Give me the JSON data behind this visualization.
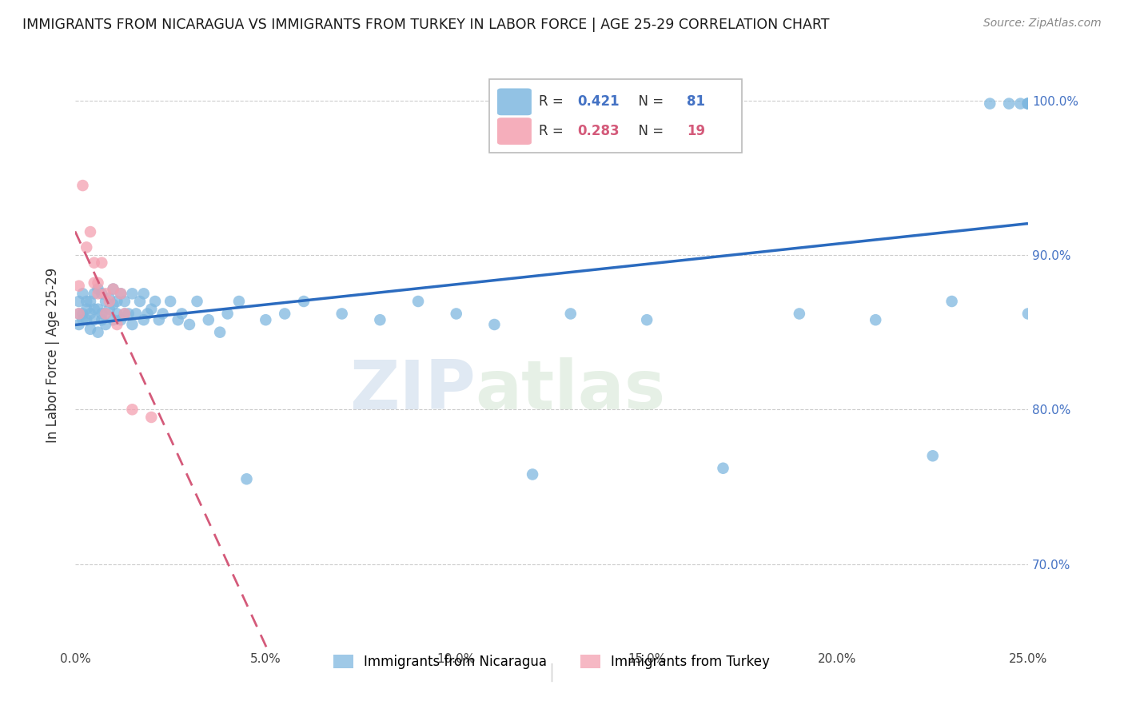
{
  "title": "IMMIGRANTS FROM NICARAGUA VS IMMIGRANTS FROM TURKEY IN LABOR FORCE | AGE 25-29 CORRELATION CHART",
  "source": "Source: ZipAtlas.com",
  "xlabel_ticks": [
    "0.0%",
    "5.0%",
    "10.0%",
    "15.0%",
    "20.0%",
    "25.0%"
  ],
  "xlabel_vals": [
    0.0,
    0.05,
    0.1,
    0.15,
    0.2,
    0.25
  ],
  "ylabel_label": "In Labor Force | Age 25-29",
  "ylabel_ticks": [
    "70.0%",
    "80.0%",
    "90.0%",
    "100.0%"
  ],
  "ylabel_vals": [
    0.7,
    0.8,
    0.9,
    1.0
  ],
  "xlim": [
    0.0,
    0.25
  ],
  "ylim": [
    0.645,
    1.025
  ],
  "blue_R": 0.421,
  "blue_N": 81,
  "pink_R": 0.283,
  "pink_N": 19,
  "blue_color": "#7fb8e0",
  "pink_color": "#f4a0b0",
  "blue_line_color": "#2b6bbf",
  "pink_line_color": "#d45a7a",
  "legend_blue_label": "Immigrants from Nicaragua",
  "legend_pink_label": "Immigrants from Turkey",
  "watermark_zip": "ZIP",
  "watermark_atlas": "atlas",
  "blue_x": [
    0.001,
    0.001,
    0.001,
    0.002,
    0.002,
    0.002,
    0.003,
    0.003,
    0.003,
    0.004,
    0.004,
    0.004,
    0.005,
    0.005,
    0.005,
    0.006,
    0.006,
    0.006,
    0.007,
    0.007,
    0.007,
    0.008,
    0.008,
    0.008,
    0.009,
    0.009,
    0.01,
    0.01,
    0.01,
    0.011,
    0.011,
    0.012,
    0.012,
    0.013,
    0.013,
    0.014,
    0.015,
    0.015,
    0.016,
    0.017,
    0.018,
    0.018,
    0.019,
    0.02,
    0.021,
    0.022,
    0.023,
    0.025,
    0.027,
    0.028,
    0.03,
    0.032,
    0.035,
    0.038,
    0.04,
    0.043,
    0.045,
    0.05,
    0.055,
    0.06,
    0.07,
    0.08,
    0.09,
    0.1,
    0.11,
    0.12,
    0.13,
    0.15,
    0.17,
    0.19,
    0.21,
    0.225,
    0.23,
    0.24,
    0.245,
    0.248,
    0.25,
    0.25,
    0.25,
    0.25,
    0.25
  ],
  "blue_y": [
    0.862,
    0.855,
    0.87,
    0.862,
    0.875,
    0.858,
    0.865,
    0.87,
    0.858,
    0.852,
    0.862,
    0.87,
    0.858,
    0.875,
    0.865,
    0.85,
    0.865,
    0.878,
    0.858,
    0.862,
    0.875,
    0.855,
    0.87,
    0.862,
    0.865,
    0.872,
    0.858,
    0.868,
    0.878,
    0.862,
    0.87,
    0.858,
    0.875,
    0.862,
    0.87,
    0.862,
    0.855,
    0.875,
    0.862,
    0.87,
    0.858,
    0.875,
    0.862,
    0.865,
    0.87,
    0.858,
    0.862,
    0.87,
    0.858,
    0.862,
    0.855,
    0.87,
    0.858,
    0.85,
    0.862,
    0.87,
    0.755,
    0.858,
    0.862,
    0.87,
    0.862,
    0.858,
    0.87,
    0.862,
    0.855,
    0.758,
    0.862,
    0.858,
    0.762,
    0.862,
    0.858,
    0.77,
    0.87,
    0.998,
    0.998,
    0.998,
    0.998,
    0.998,
    0.998,
    0.998,
    0.862
  ],
  "pink_x": [
    0.001,
    0.001,
    0.002,
    0.003,
    0.004,
    0.005,
    0.005,
    0.006,
    0.006,
    0.007,
    0.008,
    0.008,
    0.009,
    0.01,
    0.011,
    0.012,
    0.013,
    0.015,
    0.02
  ],
  "pink_y": [
    0.88,
    0.862,
    0.945,
    0.905,
    0.915,
    0.882,
    0.895,
    0.882,
    0.875,
    0.895,
    0.862,
    0.875,
    0.87,
    0.878,
    0.855,
    0.875,
    0.862,
    0.8,
    0.795
  ]
}
